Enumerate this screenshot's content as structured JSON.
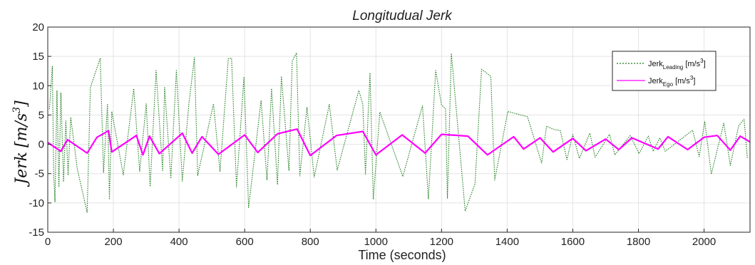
{
  "chart_data": {
    "type": "line",
    "title": "Longitudual Jerk",
    "xlabel": "Time (seconds)",
    "ylabel": "Jerk [m/s³]",
    "ylabel_parts": {
      "main": "Jerk",
      "unit": "[m/s",
      "sup": "3",
      "close": "]"
    },
    "xlim": [
      0,
      2140
    ],
    "ylim": [
      -15,
      20
    ],
    "xticks": [
      0,
      200,
      400,
      600,
      800,
      1000,
      1200,
      1400,
      1600,
      1800,
      2000
    ],
    "yticks": [
      -15,
      -10,
      -5,
      0,
      5,
      10,
      15,
      20
    ],
    "xtick_labels": [
      "0",
      "200",
      "400",
      "600",
      "800",
      "1000",
      "1200",
      "1400",
      "1600",
      "1800",
      "2000"
    ],
    "ytick_labels": [
      "-15",
      "-10",
      "-5",
      "0",
      "5",
      "10",
      "15",
      "20"
    ],
    "grid": true,
    "legend_position": "top-right",
    "legend": [
      {
        "base": "Jerk",
        "sub": "Leading",
        "unit": " [m/s",
        "sup": "3",
        "close": "]"
      },
      {
        "base": "Jerk",
        "sub": "Ego",
        "unit": " [m/s",
        "sup": "3",
        "close": "]"
      }
    ],
    "series": [
      {
        "color": "#1a7a1a",
        "style": "dotted",
        "x": [
          5,
          14,
          18,
          22,
          28,
          34,
          40,
          48,
          55,
          62,
          70,
          90,
          120,
          130,
          160,
          170,
          182,
          188,
          195,
          230,
          262,
          280,
          300,
          312,
          330,
          350,
          356,
          375,
          392,
          410,
          430,
          447,
          457,
          505,
          525,
          550,
          560,
          575,
          598,
          612,
          650,
          668,
          682,
          700,
          712,
          735,
          745,
          758,
          768,
          790,
          812,
          858,
          882,
          948,
          960,
          968,
          982,
          992,
          1012,
          1082,
          1142,
          1160,
          1182,
          1200,
          1212,
          1218,
          1230,
          1272,
          1302,
          1322,
          1350,
          1362,
          1402,
          1462,
          1505,
          1520,
          1540,
          1562,
          1582,
          1600,
          1620,
          1652,
          1668,
          1712,
          1728,
          1775,
          1802,
          1830,
          1845,
          1865,
          1882,
          1965,
          1985,
          2002,
          2022,
          2060,
          2080,
          2105,
          2122,
          2132
        ],
        "y": [
          6,
          13.3,
          -5.2,
          -9.8,
          9.2,
          -7.3,
          8.8,
          -6.4,
          4,
          -5.3,
          4.6,
          -4.2,
          -11.6,
          9.7,
          14.7,
          -4.8,
          6.8,
          -9.4,
          5.6,
          -5.2,
          9.5,
          -4.6,
          6.9,
          -7.2,
          12.6,
          -4.5,
          9.7,
          -5.8,
          12.6,
          -6.3,
          6.9,
          14.8,
          -5.3,
          6.9,
          -4.6,
          14.6,
          14.7,
          -7.3,
          11.5,
          -10.8,
          7.5,
          -6.1,
          9.5,
          -6.9,
          11.6,
          -4.5,
          14.2,
          15.6,
          -5.4,
          6.3,
          -5.6,
          6.8,
          -4.4,
          9.2,
          6.8,
          -5.1,
          12.2,
          -9.4,
          5.5,
          -5.5,
          6.6,
          -9.3,
          12.6,
          6.7,
          6.1,
          -9.2,
          15.5,
          -11.4,
          -6.7,
          12.8,
          11.6,
          -6.1,
          5.6,
          4.7,
          -3.2,
          3.1,
          2.6,
          2.3,
          -2.6,
          1.7,
          -2.4,
          1.9,
          -2.2,
          1.7,
          -1.8,
          1.5,
          -1.6,
          1.4,
          -1.2,
          1.1,
          -1.2,
          2.4,
          -2.1,
          3.9,
          -5.1,
          3.6,
          -3.6,
          3.1,
          4.3,
          -2.4
        ]
      },
      {
        "color": "#ff00ff",
        "style": "solid",
        "x": [
          0,
          40,
          60,
          120,
          150,
          185,
          195,
          270,
          290,
          310,
          340,
          410,
          440,
          470,
          520,
          600,
          640,
          700,
          760,
          800,
          880,
          960,
          1000,
          1080,
          1150,
          1200,
          1280,
          1340,
          1420,
          1450,
          1500,
          1540,
          1600,
          1640,
          1700,
          1740,
          1780,
          1860,
          1890,
          1950,
          2000,
          2040,
          2080,
          2110,
          2140
        ],
        "y": [
          0.3,
          -1.2,
          0.8,
          -1.5,
          1.2,
          2.3,
          -1.3,
          1.5,
          -1.8,
          1.4,
          -1.6,
          1.9,
          -1.5,
          1.3,
          -1.7,
          1.6,
          -1.4,
          1.8,
          2.6,
          -1.9,
          1.5,
          2.2,
          -1.8,
          1.6,
          -1.5,
          1.7,
          1.4,
          -1.8,
          1.3,
          -0.8,
          1.1,
          -1.3,
          1.0,
          -1.1,
          0.9,
          -0.9,
          1.1,
          -0.8,
          1.3,
          -0.9,
          1.2,
          1.5,
          -1.0,
          1.4,
          0.4
        ]
      }
    ]
  }
}
